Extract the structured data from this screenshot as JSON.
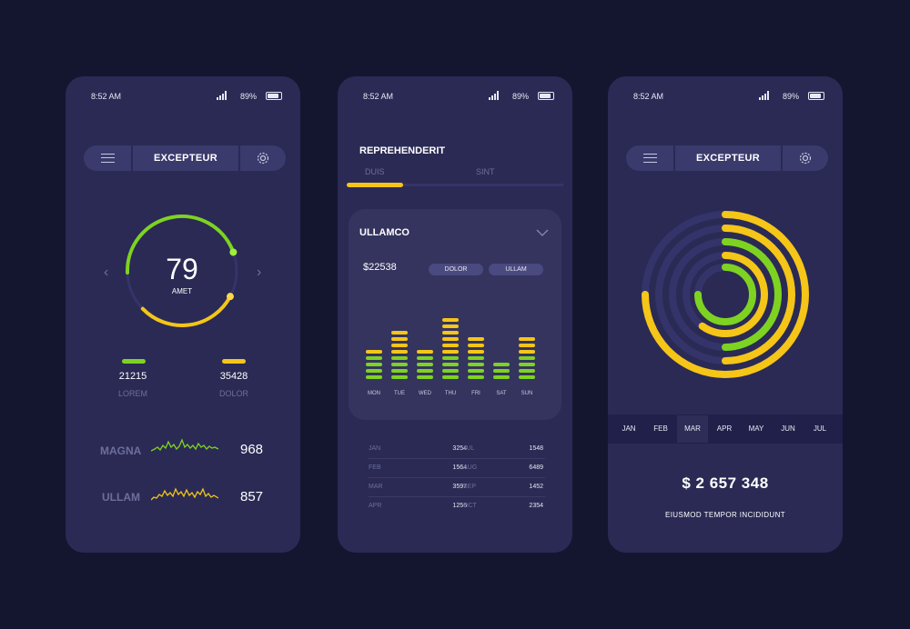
{
  "colors": {
    "background": "#141630",
    "card": "#2a2a55",
    "green": "#7ed321",
    "yellow": "#f5c518",
    "muted": "#6e6e9c"
  },
  "phone1": {
    "status": {
      "time": "8:52 AM",
      "battery": "89%"
    },
    "header": {
      "title": "EXCEPTEUR",
      "menu_icon": "hamburger-menu-icon",
      "settings_icon": "gear-icon"
    },
    "gauge": {
      "value": "79",
      "label": "AMET",
      "green_fraction": 0.45,
      "yellow_fraction": 0.3
    },
    "stats": [
      {
        "value": "21215",
        "label": "LOREM",
        "color": "#7ed321"
      },
      {
        "value": "35428",
        "label": "DOLOR",
        "color": "#f5c518"
      }
    ],
    "trends": [
      {
        "label": "MAGNA",
        "value": "968",
        "color": "#7ed321"
      },
      {
        "label": "ULLAM",
        "value": "857",
        "color": "#f5c518"
      }
    ]
  },
  "phone2": {
    "status": {
      "time": "8:52 AM",
      "battery": "89%"
    },
    "title": "REPREHENDERIT",
    "tabs": [
      {
        "label": "DUIS",
        "active": true
      },
      {
        "label": "SINT",
        "active": false
      }
    ],
    "card": {
      "title": "ULLAMCO",
      "amount": "$22538",
      "pills": [
        "DOLOR",
        "ULLAM"
      ],
      "chart_data": {
        "type": "bar",
        "categories": [
          "MON",
          "TUE",
          "WED",
          "THU",
          "FRI",
          "SAT",
          "SUN"
        ],
        "series": [
          {
            "values": [
              5,
              8,
              5,
              10,
              7,
              3,
              7
            ]
          }
        ]
      }
    },
    "table": [
      [
        "JAN",
        "3254",
        "JUL",
        "1548"
      ],
      [
        "FEB",
        "1564",
        "AUG",
        "6489"
      ],
      [
        "MAR",
        "3597",
        "SEP",
        "1452"
      ],
      [
        "APR",
        "1256",
        "OCT",
        "2354"
      ]
    ]
  },
  "phone3": {
    "status": {
      "time": "8:52 AM",
      "battery": "89%"
    },
    "header": {
      "title": "EXCEPTEUR",
      "menu_icon": "hamburger-menu-icon",
      "settings_icon": "gear-icon"
    },
    "rings": [
      {
        "color": "#f5c518",
        "fraction": 0.75
      },
      {
        "color": "#f5c518",
        "fraction": 0.5
      },
      {
        "color": "#7ed321",
        "fraction": 0.5
      },
      {
        "color": "#f5c518",
        "fraction": 0.6
      },
      {
        "color": "#7ed321",
        "fraction": 0.75
      }
    ],
    "months": [
      "JAN",
      "FEB",
      "MAR",
      "APR",
      "MAY",
      "JUN",
      "JUL"
    ],
    "active_month": "MAR",
    "total": "$ 2 657 348",
    "caption": "EIUSMOD TEMPOR INCIDIDUNT"
  }
}
